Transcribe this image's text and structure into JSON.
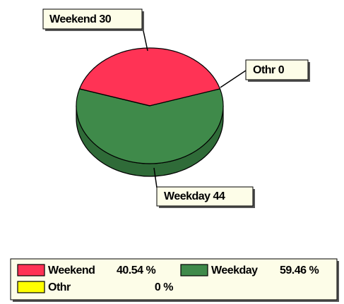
{
  "chart_data": {
    "type": "pie3d",
    "categories": [
      "Weekend",
      "Weekday",
      "Othr"
    ],
    "values": [
      30,
      44,
      0
    ],
    "colors": [
      "#ff3355",
      "#3f8a4a",
      "#ffff00"
    ],
    "side_color": "#2f6b38",
    "legend_labels": [
      "40.54 %",
      "59.46 %",
      "0 %"
    ]
  }
}
